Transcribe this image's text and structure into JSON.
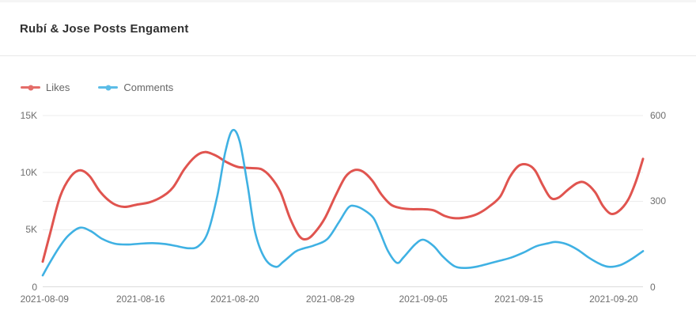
{
  "header": {
    "title": "Rubí & Jose Posts Engament"
  },
  "legend": {
    "items": [
      {
        "label": "Likes",
        "color": "#e0544f"
      },
      {
        "label": "Comments",
        "color": "#3fb1e3"
      }
    ]
  },
  "chart_data": {
    "type": "line",
    "title": "Rubí & Jose Posts Engament",
    "legend_entries": [
      "Likes",
      "Comments"
    ],
    "legend_position": "top-left",
    "grid": true,
    "smooth_lines": true,
    "x_axis": {
      "kind": "category-dates",
      "tick_labels": [
        "2021-08-09",
        "2021-08-16",
        "2021-08-20",
        "2021-08-29",
        "2021-09-05",
        "2021-09-15",
        "2021-09-20"
      ],
      "tick_pos": [
        0.003,
        0.163,
        0.32,
        0.479,
        0.634,
        0.793,
        0.951
      ],
      "note": "tick_pos and point x values are fractions 0-1 across the plot width; labeled dates are evenly spaced categories"
    },
    "y_axis_left": {
      "series": "Likes",
      "range": [
        0,
        15000
      ],
      "tick_values": [
        0,
        5000,
        10000,
        15000
      ],
      "tick_labels": [
        "0",
        "5K",
        "10K",
        "15K"
      ]
    },
    "y_axis_right": {
      "series": "Comments",
      "range": [
        0,
        600
      ],
      "tick_values": [
        0,
        300,
        600
      ],
      "tick_labels": [
        "0",
        "300",
        "600"
      ]
    },
    "series": [
      {
        "name": "Likes",
        "axis": "left",
        "color": "#e0544f",
        "line_width": 3,
        "points": [
          [
            0.0,
            2200
          ],
          [
            0.012,
            4600
          ],
          [
            0.029,
            7900
          ],
          [
            0.046,
            9600
          ],
          [
            0.062,
            10200
          ],
          [
            0.078,
            9700
          ],
          [
            0.096,
            8300
          ],
          [
            0.117,
            7300
          ],
          [
            0.136,
            7000
          ],
          [
            0.157,
            7200
          ],
          [
            0.178,
            7400
          ],
          [
            0.199,
            7900
          ],
          [
            0.217,
            8700
          ],
          [
            0.236,
            10300
          ],
          [
            0.254,
            11400
          ],
          [
            0.27,
            11800
          ],
          [
            0.288,
            11500
          ],
          [
            0.307,
            10900
          ],
          [
            0.325,
            10500
          ],
          [
            0.346,
            10400
          ],
          [
            0.364,
            10300
          ],
          [
            0.38,
            9600
          ],
          [
            0.396,
            8300
          ],
          [
            0.412,
            6000
          ],
          [
            0.428,
            4400
          ],
          [
            0.441,
            4200
          ],
          [
            0.454,
            4800
          ],
          [
            0.47,
            6000
          ],
          [
            0.488,
            8000
          ],
          [
            0.504,
            9600
          ],
          [
            0.518,
            10200
          ],
          [
            0.533,
            10100
          ],
          [
            0.549,
            9300
          ],
          [
            0.564,
            8100
          ],
          [
            0.58,
            7200
          ],
          [
            0.596,
            6900
          ],
          [
            0.614,
            6800
          ],
          [
            0.633,
            6800
          ],
          [
            0.651,
            6700
          ],
          [
            0.67,
            6200
          ],
          [
            0.688,
            6000
          ],
          [
            0.707,
            6100
          ],
          [
            0.725,
            6400
          ],
          [
            0.743,
            7000
          ],
          [
            0.762,
            7900
          ],
          [
            0.778,
            9600
          ],
          [
            0.793,
            10600
          ],
          [
            0.807,
            10700
          ],
          [
            0.82,
            10200
          ],
          [
            0.833,
            8900
          ],
          [
            0.846,
            7800
          ],
          [
            0.859,
            7800
          ],
          [
            0.875,
            8500
          ],
          [
            0.891,
            9100
          ],
          [
            0.904,
            9100
          ],
          [
            0.92,
            8300
          ],
          [
            0.933,
            7100
          ],
          [
            0.946,
            6400
          ],
          [
            0.959,
            6600
          ],
          [
            0.975,
            7600
          ],
          [
            0.988,
            9200
          ],
          [
            1.0,
            11200
          ]
        ]
      },
      {
        "name": "Comments",
        "axis": "right",
        "color": "#3fb1e3",
        "line_width": 2.6,
        "points": [
          [
            0.0,
            40
          ],
          [
            0.012,
            85
          ],
          [
            0.028,
            140
          ],
          [
            0.043,
            180
          ],
          [
            0.062,
            207
          ],
          [
            0.08,
            195
          ],
          [
            0.099,
            168
          ],
          [
            0.12,
            151
          ],
          [
            0.141,
            148
          ],
          [
            0.162,
            151
          ],
          [
            0.183,
            153
          ],
          [
            0.204,
            150
          ],
          [
            0.222,
            143
          ],
          [
            0.243,
            135
          ],
          [
            0.259,
            142
          ],
          [
            0.275,
            190
          ],
          [
            0.291,
            320
          ],
          [
            0.304,
            470
          ],
          [
            0.316,
            548
          ],
          [
            0.328,
            510
          ],
          [
            0.341,
            360
          ],
          [
            0.354,
            190
          ],
          [
            0.37,
            100
          ],
          [
            0.388,
            70
          ],
          [
            0.401,
            88
          ],
          [
            0.421,
            123
          ],
          [
            0.434,
            134
          ],
          [
            0.452,
            145
          ],
          [
            0.474,
            167
          ],
          [
            0.493,
            225
          ],
          [
            0.509,
            277
          ],
          [
            0.52,
            283
          ],
          [
            0.536,
            268
          ],
          [
            0.551,
            241
          ],
          [
            0.562,
            191
          ],
          [
            0.575,
            126
          ],
          [
            0.59,
            84
          ],
          [
            0.601,
            103
          ],
          [
            0.62,
            148
          ],
          [
            0.634,
            165
          ],
          [
            0.651,
            143
          ],
          [
            0.667,
            105
          ],
          [
            0.686,
            72
          ],
          [
            0.704,
            66
          ],
          [
            0.722,
            70
          ],
          [
            0.741,
            80
          ],
          [
            0.759,
            90
          ],
          [
            0.78,
            102
          ],
          [
            0.801,
            120
          ],
          [
            0.822,
            142
          ],
          [
            0.841,
            152
          ],
          [
            0.854,
            157
          ],
          [
            0.872,
            150
          ],
          [
            0.891,
            130
          ],
          [
            0.909,
            103
          ],
          [
            0.928,
            80
          ],
          [
            0.943,
            70
          ],
          [
            0.962,
            76
          ],
          [
            0.98,
            96
          ],
          [
            1.0,
            125
          ]
        ]
      }
    ]
  }
}
